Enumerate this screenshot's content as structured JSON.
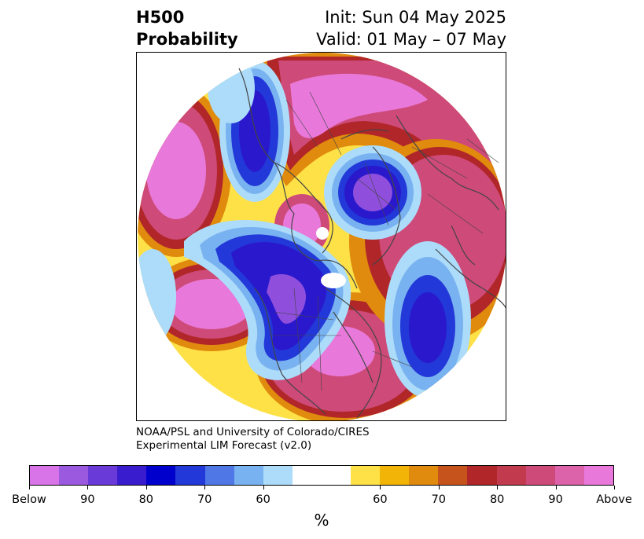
{
  "title": {
    "left_line1": "H500",
    "left_line2": "Probability",
    "right_line1": "Init: Sun 04 May 2025",
    "right_line2": "Valid: 01 May – 07 May"
  },
  "credit": {
    "line1": "NOAA/PSL and University of Colorado/CIRES",
    "line2": "Experimental LIM Forecast (v2.0)"
  },
  "colorbar": {
    "units": "%",
    "colors": [
      "#d873e8",
      "#9b59e0",
      "#6a3ad8",
      "#3a1ccf",
      "#0000cc",
      "#2238d8",
      "#4f78e6",
      "#79b2f0",
      "#acdcfa",
      "#ffffff",
      "#ffffff",
      "#fde147",
      "#f2b407",
      "#e08a0e",
      "#c6531c",
      "#b02629",
      "#c23a4e",
      "#ce4a78",
      "#dc62aa",
      "#e879db"
    ],
    "ticks": [
      "Below",
      "90",
      "80",
      "70",
      "60",
      "60",
      "70",
      "80",
      "90",
      "Above"
    ]
  },
  "map": {
    "projection": "north-polar-stereographic",
    "colors": {
      "above_max": "#e879db",
      "above_high": "#ce4a78",
      "above_mid": "#b02629",
      "above_low": "#e08a0e",
      "above_min": "#fde147",
      "below_max": "#8f4fdc",
      "below_high": "#2a18cc",
      "below_mid": "#2238d8",
      "below_low": "#79b2f0",
      "below_min": "#acdcfa"
    }
  }
}
